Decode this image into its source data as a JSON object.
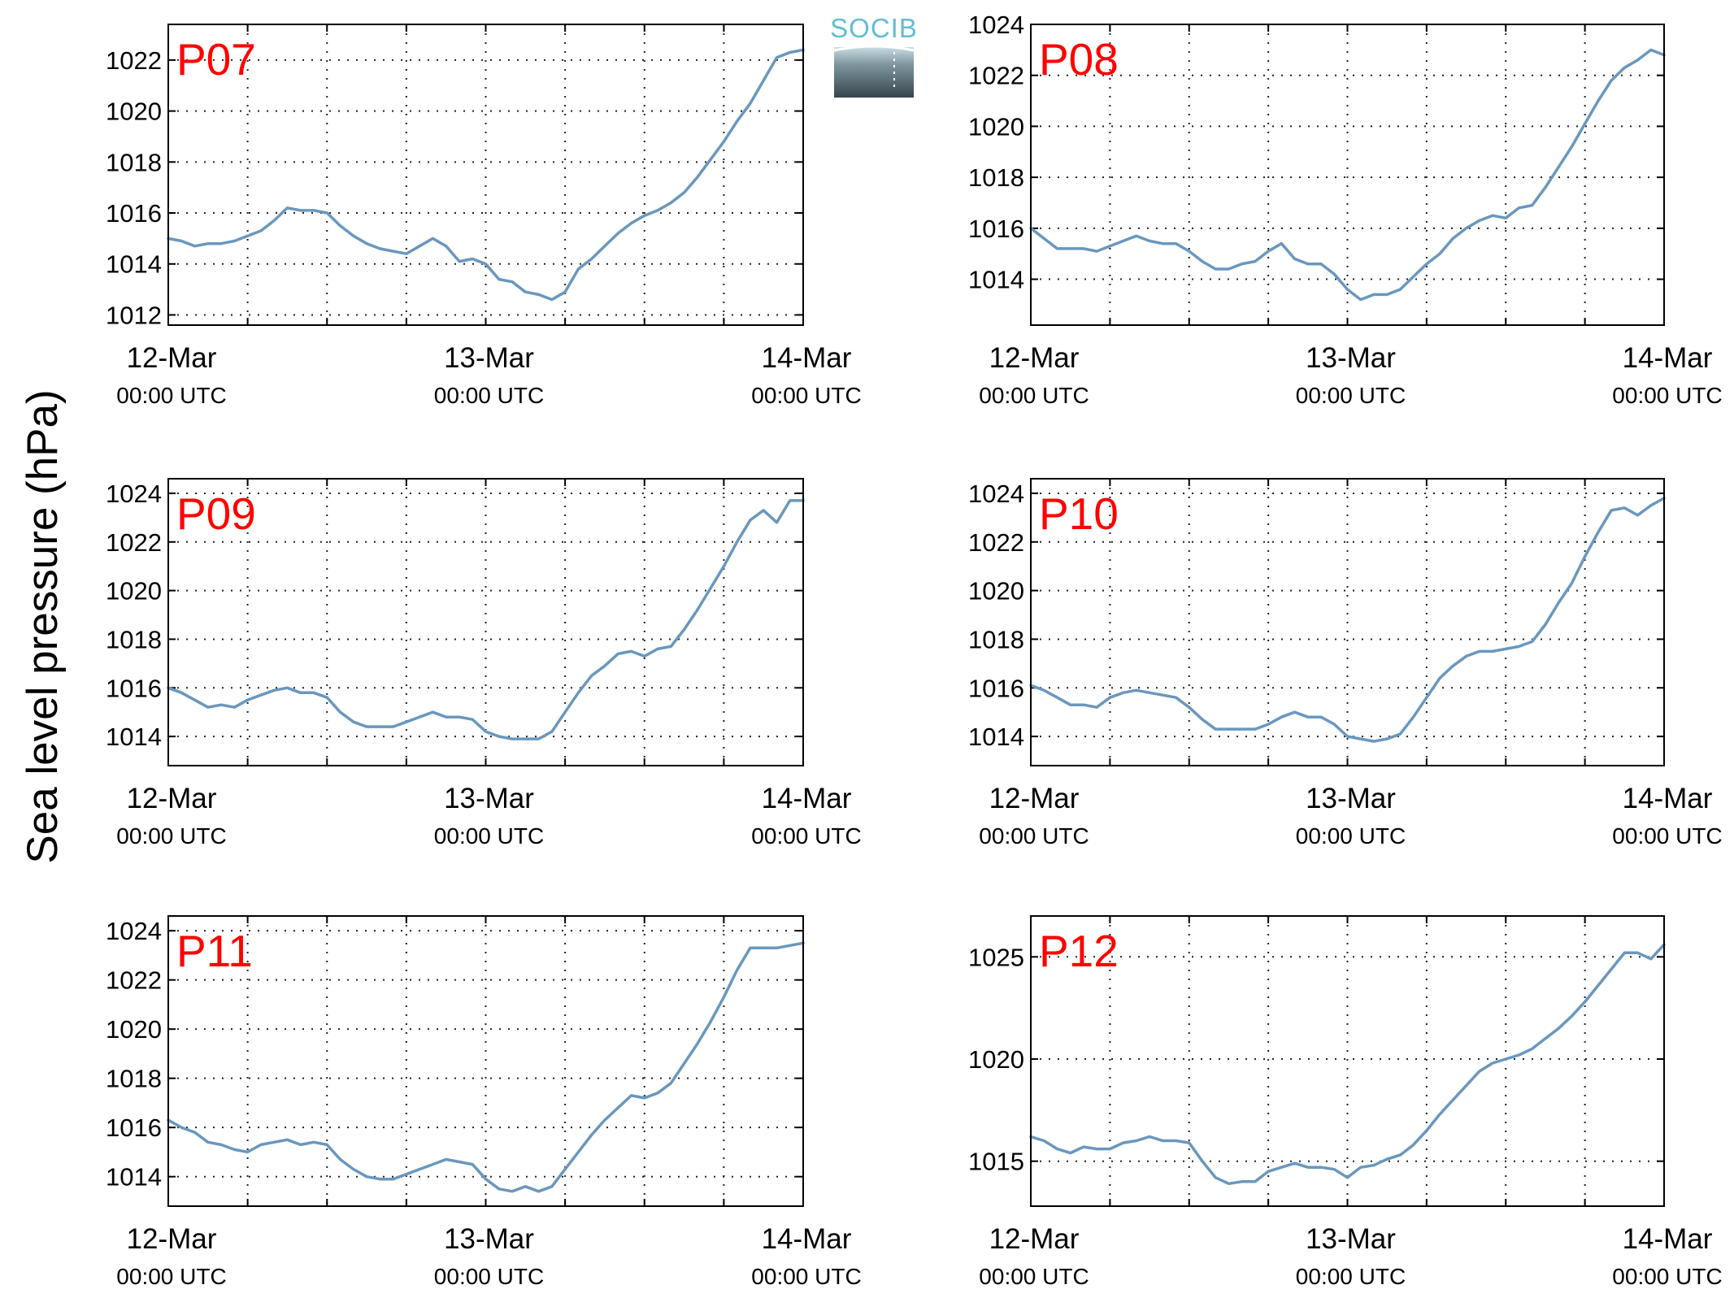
{
  "figure": {
    "ylabel": "Sea level pressure (hPa)",
    "logo_text": "SOCIB"
  },
  "colors": {
    "line": "#6a97bd",
    "label": "#ff0000",
    "grid": "#222222",
    "logo_text": "#62bdd2"
  },
  "chart_data": [
    {
      "type": "line",
      "name": "P07",
      "x_ticks": [
        [
          "12-Mar",
          "00:00 UTC"
        ],
        [
          "13-Mar",
          "00:00 UTC"
        ],
        [
          "14-Mar",
          "00:00 UTC"
        ]
      ],
      "xlim": [
        0,
        48
      ],
      "ylim": [
        1011.6,
        1023.4
      ],
      "yticks": [
        1012,
        1014,
        1016,
        1018,
        1020,
        1022
      ],
      "grid": true,
      "x": [
        0,
        1,
        2,
        3,
        4,
        5,
        6,
        7,
        8,
        9,
        10,
        11,
        12,
        13,
        14,
        15,
        16,
        17,
        18,
        19,
        20,
        21,
        22,
        23,
        24,
        25,
        26,
        27,
        28,
        29,
        30,
        31,
        32,
        33,
        34,
        35,
        36,
        37,
        38,
        39,
        40,
        41,
        42,
        43,
        44,
        45,
        46,
        47,
        48
      ],
      "y": [
        1015.0,
        1014.9,
        1014.7,
        1014.8,
        1014.8,
        1014.9,
        1015.1,
        1015.3,
        1015.7,
        1016.2,
        1016.1,
        1016.1,
        1016.0,
        1015.5,
        1015.1,
        1014.8,
        1014.6,
        1014.5,
        1014.4,
        1014.7,
        1015.0,
        1014.7,
        1014.1,
        1014.2,
        1014.0,
        1013.4,
        1013.3,
        1012.9,
        1012.8,
        1012.6,
        1012.9,
        1013.8,
        1014.2,
        1014.7,
        1015.2,
        1015.6,
        1015.9,
        1016.1,
        1016.4,
        1016.8,
        1017.4,
        1018.1,
        1018.8,
        1019.6,
        1020.3,
        1021.2,
        1022.1,
        1022.3,
        1022.4
      ]
    },
    {
      "type": "line",
      "name": "P08",
      "x_ticks": [
        [
          "12-Mar",
          "00:00 UTC"
        ],
        [
          "13-Mar",
          "00:00 UTC"
        ],
        [
          "14-Mar",
          "00:00 UTC"
        ]
      ],
      "xlim": [
        0,
        48
      ],
      "ylim": [
        1012.2,
        1024.0
      ],
      "yticks": [
        1014,
        1016,
        1018,
        1020,
        1022,
        1024
      ],
      "grid": true,
      "x": [
        0,
        1,
        2,
        3,
        4,
        5,
        6,
        7,
        8,
        9,
        10,
        11,
        12,
        13,
        14,
        15,
        16,
        17,
        18,
        19,
        20,
        21,
        22,
        23,
        24,
        25,
        26,
        27,
        28,
        29,
        30,
        31,
        32,
        33,
        34,
        35,
        36,
        37,
        38,
        39,
        40,
        41,
        42,
        43,
        44,
        45,
        46,
        47,
        48
      ],
      "y": [
        1016.0,
        1015.6,
        1015.2,
        1015.2,
        1015.2,
        1015.1,
        1015.3,
        1015.5,
        1015.7,
        1015.5,
        1015.4,
        1015.4,
        1015.1,
        1014.7,
        1014.4,
        1014.4,
        1014.6,
        1014.7,
        1015.1,
        1015.4,
        1014.8,
        1014.6,
        1014.6,
        1014.2,
        1013.6,
        1013.2,
        1013.4,
        1013.4,
        1013.6,
        1014.1,
        1014.6,
        1015.0,
        1015.6,
        1016.0,
        1016.3,
        1016.5,
        1016.4,
        1016.8,
        1016.9,
        1017.6,
        1018.4,
        1019.2,
        1020.1,
        1021.0,
        1021.8,
        1022.3,
        1022.6,
        1023.0,
        1022.8
      ]
    },
    {
      "type": "line",
      "name": "P09",
      "x_ticks": [
        [
          "12-Mar",
          "00:00 UTC"
        ],
        [
          "13-Mar",
          "00:00 UTC"
        ],
        [
          "14-Mar",
          "00:00 UTC"
        ]
      ],
      "xlim": [
        0,
        48
      ],
      "ylim": [
        1012.8,
        1024.6
      ],
      "yticks": [
        1014,
        1016,
        1018,
        1020,
        1022,
        1024
      ],
      "grid": true,
      "x": [
        0,
        1,
        2,
        3,
        4,
        5,
        6,
        7,
        8,
        9,
        10,
        11,
        12,
        13,
        14,
        15,
        16,
        17,
        18,
        19,
        20,
        21,
        22,
        23,
        24,
        25,
        26,
        27,
        28,
        29,
        30,
        31,
        32,
        33,
        34,
        35,
        36,
        37,
        38,
        39,
        40,
        41,
        42,
        43,
        44,
        45,
        46,
        47,
        48
      ],
      "y": [
        1016.0,
        1015.8,
        1015.5,
        1015.2,
        1015.3,
        1015.2,
        1015.5,
        1015.7,
        1015.9,
        1016.0,
        1015.8,
        1015.8,
        1015.6,
        1015.0,
        1014.6,
        1014.4,
        1014.4,
        1014.4,
        1014.6,
        1014.8,
        1015.0,
        1014.8,
        1014.8,
        1014.7,
        1014.2,
        1014.0,
        1013.9,
        1013.9,
        1013.9,
        1014.2,
        1015.0,
        1015.8,
        1016.5,
        1016.9,
        1017.4,
        1017.5,
        1017.3,
        1017.6,
        1017.7,
        1018.4,
        1019.2,
        1020.1,
        1021.0,
        1022.0,
        1022.9,
        1023.3,
        1022.8,
        1023.7,
        1023.7
      ]
    },
    {
      "type": "line",
      "name": "P10",
      "x_ticks": [
        [
          "12-Mar",
          "00:00 UTC"
        ],
        [
          "13-Mar",
          "00:00 UTC"
        ],
        [
          "14-Mar",
          "00:00 UTC"
        ]
      ],
      "xlim": [
        0,
        48
      ],
      "ylim": [
        1012.8,
        1024.6
      ],
      "yticks": [
        1014,
        1016,
        1018,
        1020,
        1022,
        1024
      ],
      "grid": true,
      "x": [
        0,
        1,
        2,
        3,
        4,
        5,
        6,
        7,
        8,
        9,
        10,
        11,
        12,
        13,
        14,
        15,
        16,
        17,
        18,
        19,
        20,
        21,
        22,
        23,
        24,
        25,
        26,
        27,
        28,
        29,
        30,
        31,
        32,
        33,
        34,
        35,
        36,
        37,
        38,
        39,
        40,
        41,
        42,
        43,
        44,
        45,
        46,
        47,
        48
      ],
      "y": [
        1016.1,
        1015.9,
        1015.6,
        1015.3,
        1015.3,
        1015.2,
        1015.6,
        1015.8,
        1015.9,
        1015.8,
        1015.7,
        1015.6,
        1015.2,
        1014.7,
        1014.3,
        1014.3,
        1014.3,
        1014.3,
        1014.5,
        1014.8,
        1015.0,
        1014.8,
        1014.8,
        1014.5,
        1014.0,
        1013.9,
        1013.8,
        1013.9,
        1014.1,
        1014.8,
        1015.6,
        1016.4,
        1016.9,
        1017.3,
        1017.5,
        1017.5,
        1017.6,
        1017.7,
        1017.9,
        1018.6,
        1019.5,
        1020.3,
        1021.4,
        1022.4,
        1023.3,
        1023.4,
        1023.1,
        1023.5,
        1023.8
      ]
    },
    {
      "type": "line",
      "name": "P11",
      "x_ticks": [
        [
          "12-Mar",
          "00:00 UTC"
        ],
        [
          "13-Mar",
          "00:00 UTC"
        ],
        [
          "14-Mar",
          "00:00 UTC"
        ]
      ],
      "xlim": [
        0,
        48
      ],
      "ylim": [
        1012.8,
        1024.6
      ],
      "yticks": [
        1014,
        1016,
        1018,
        1020,
        1022,
        1024
      ],
      "grid": true,
      "x": [
        0,
        1,
        2,
        3,
        4,
        5,
        6,
        7,
        8,
        9,
        10,
        11,
        12,
        13,
        14,
        15,
        16,
        17,
        18,
        19,
        20,
        21,
        22,
        23,
        24,
        25,
        26,
        27,
        28,
        29,
        30,
        31,
        32,
        33,
        34,
        35,
        36,
        37,
        38,
        39,
        40,
        41,
        42,
        43,
        44,
        45,
        46,
        47,
        48
      ],
      "y": [
        1016.3,
        1016.0,
        1015.8,
        1015.4,
        1015.3,
        1015.1,
        1015.0,
        1015.3,
        1015.4,
        1015.5,
        1015.3,
        1015.4,
        1015.3,
        1014.7,
        1014.3,
        1014.0,
        1013.9,
        1013.9,
        1014.1,
        1014.3,
        1014.5,
        1014.7,
        1014.6,
        1014.5,
        1013.9,
        1013.5,
        1013.4,
        1013.6,
        1013.4,
        1013.6,
        1014.3,
        1015.0,
        1015.7,
        1016.3,
        1016.8,
        1017.3,
        1017.2,
        1017.4,
        1017.8,
        1018.6,
        1019.4,
        1020.3,
        1021.3,
        1022.4,
        1023.3,
        1023.3,
        1023.3,
        1023.4,
        1023.5
      ]
    },
    {
      "type": "line",
      "name": "P12",
      "x_ticks": [
        [
          "12-Mar",
          "00:00 UTC"
        ],
        [
          "13-Mar",
          "00:00 UTC"
        ],
        [
          "14-Mar",
          "00:00 UTC"
        ]
      ],
      "xlim": [
        0,
        48
      ],
      "ylim": [
        1012.8,
        1027.0
      ],
      "yticks": [
        1015,
        1020,
        1025
      ],
      "grid": true,
      "x": [
        0,
        1,
        2,
        3,
        4,
        5,
        6,
        7,
        8,
        9,
        10,
        11,
        12,
        13,
        14,
        15,
        16,
        17,
        18,
        19,
        20,
        21,
        22,
        23,
        24,
        25,
        26,
        27,
        28,
        29,
        30,
        31,
        32,
        33,
        34,
        35,
        36,
        37,
        38,
        39,
        40,
        41,
        42,
        43,
        44,
        45,
        46,
        47,
        48
      ],
      "y": [
        1016.2,
        1016.0,
        1015.6,
        1015.4,
        1015.7,
        1015.6,
        1015.6,
        1015.9,
        1016.0,
        1016.2,
        1016.0,
        1016.0,
        1015.9,
        1015.0,
        1014.2,
        1013.9,
        1014.0,
        1014.0,
        1014.5,
        1014.7,
        1014.9,
        1014.7,
        1014.7,
        1014.6,
        1014.2,
        1014.7,
        1014.8,
        1015.1,
        1015.3,
        1015.8,
        1016.5,
        1017.3,
        1018.0,
        1018.7,
        1019.4,
        1019.8,
        1020.0,
        1020.2,
        1020.5,
        1021.0,
        1021.5,
        1022.1,
        1022.8,
        1023.6,
        1024.4,
        1025.2,
        1025.2,
        1024.9,
        1025.6
      ]
    }
  ]
}
